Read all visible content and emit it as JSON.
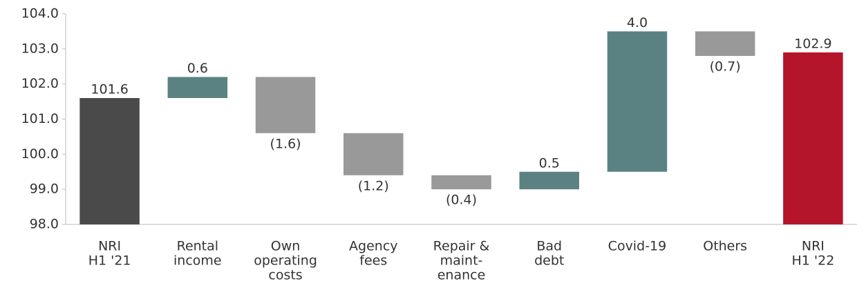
{
  "chart_data": {
    "type": "waterfall",
    "categories": [
      [
        "NRI",
        "H1 '21"
      ],
      [
        "Rental",
        "income"
      ],
      [
        "Own",
        "operating",
        "costs"
      ],
      [
        "Agency",
        "fees"
      ],
      [
        "Repair &",
        "maint-",
        "enance"
      ],
      [
        "Bad",
        "debt"
      ],
      [
        "Covid-19"
      ],
      [
        "Others"
      ],
      [
        "NRI",
        "H1 '22"
      ]
    ],
    "values": [
      101.6,
      0.6,
      -1.6,
      -1.2,
      -0.4,
      0.5,
      4.0,
      -0.7,
      102.9
    ],
    "value_labels": [
      "101.6",
      "0.6",
      "(1.6)",
      "(1.2)",
      "(0.4)",
      "0.5",
      "4.0",
      "(0.7)",
      "102.9"
    ],
    "colors": [
      "#4a4a4a",
      "#5b8283",
      "#999999",
      "#999999",
      "#999999",
      "#5b8283",
      "#5b8283",
      "#999999",
      "#b5152b"
    ],
    "ylim": [
      98,
      104
    ],
    "yticks": [
      {
        "value": 98,
        "label": "98.0"
      },
      {
        "value": 99,
        "label": "99.0"
      },
      {
        "value": 100,
        "label": "100.0"
      },
      {
        "value": 101,
        "label": "101.0"
      },
      {
        "value": 102,
        "label": "102.0"
      },
      {
        "value": 103,
        "label": "103.0"
      },
      {
        "value": 104,
        "label": "104.0"
      }
    ],
    "grid": false
  }
}
